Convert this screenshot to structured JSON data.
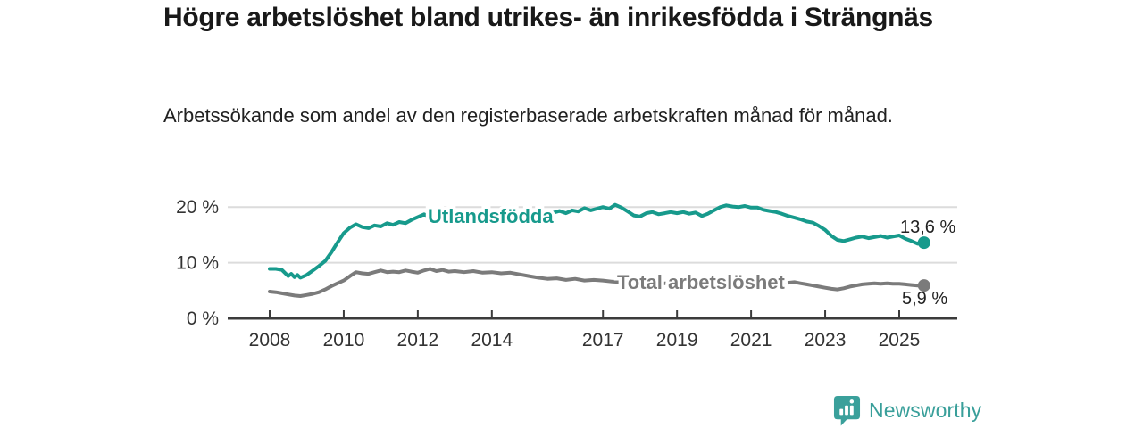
{
  "page": {
    "title": "Högre arbetslöshet bland utrikes- än inrikesfödda i Strängnäs",
    "subtitle": "Arbetssökande som andel av den registerbaserade arbetskraften månad för månad.",
    "brand": {
      "name": "Newsworthy",
      "logo_icon": "bar-chart-speech-bubble-icon",
      "color": "#3aa09b"
    }
  },
  "chart_data": {
    "type": "line",
    "title": "Högre arbetslöshet bland utrikes- än inrikesfödda i Strängnäs",
    "subtitle": "Arbetssökande som andel av den registerbaserade arbetskraften månad för månad.",
    "unit": "%",
    "grid": "horizontal-only",
    "legend_position": "inline-labels-on-lines",
    "colors": {
      "axis": "#3b3b3b",
      "gridline": "#dcdcdc",
      "tick_text": "#333333",
      "end_label_text": "#222222"
    },
    "x_axis": {
      "label": "",
      "ticks": [
        2008,
        2010,
        2012,
        2014,
        2017,
        2019,
        2021,
        2023,
        2025
      ],
      "range": [
        2006.9,
        2026.6
      ]
    },
    "y_axis": {
      "label": "",
      "ticks": [
        0,
        10,
        20
      ],
      "tick_labels": [
        "0 %",
        "10 %",
        "20 %"
      ],
      "range": [
        0,
        22.5
      ]
    },
    "series": [
      {
        "name": "Utlandsfödda",
        "color": "#179a8c",
        "end_value": 13.6,
        "end_label": "13,6 %",
        "points": [
          [
            2008.0,
            8.9
          ],
          [
            2008.17,
            8.9
          ],
          [
            2008.33,
            8.7
          ],
          [
            2008.5,
            7.6
          ],
          [
            2008.58,
            8.0
          ],
          [
            2008.67,
            7.4
          ],
          [
            2008.75,
            7.8
          ],
          [
            2008.83,
            7.3
          ],
          [
            2009.0,
            7.8
          ],
          [
            2009.17,
            8.6
          ],
          [
            2009.33,
            9.4
          ],
          [
            2009.5,
            10.3
          ],
          [
            2009.67,
            11.9
          ],
          [
            2009.83,
            13.6
          ],
          [
            2010.0,
            15.3
          ],
          [
            2010.17,
            16.3
          ],
          [
            2010.33,
            16.9
          ],
          [
            2010.5,
            16.4
          ],
          [
            2010.67,
            16.2
          ],
          [
            2010.83,
            16.7
          ],
          [
            2011.0,
            16.5
          ],
          [
            2011.17,
            17.1
          ],
          [
            2011.33,
            16.8
          ],
          [
            2011.5,
            17.3
          ],
          [
            2011.67,
            17.1
          ],
          [
            2011.83,
            17.7
          ],
          [
            2012.0,
            18.2
          ],
          [
            2012.17,
            18.7
          ],
          [
            2012.33,
            18.2
          ],
          [
            2012.5,
            18.5
          ],
          [
            2012.67,
            18.1
          ],
          [
            2012.83,
            18.4
          ],
          [
            2013.0,
            18.3
          ],
          [
            2013.25,
            18.5
          ],
          [
            2013.5,
            18.4
          ],
          [
            2013.75,
            18.6
          ],
          [
            2014.0,
            18.5
          ],
          [
            2014.25,
            18.7
          ],
          [
            2014.5,
            18.5
          ],
          [
            2014.75,
            18.6
          ],
          [
            2015.0,
            18.7
          ],
          [
            2015.25,
            18.6
          ],
          [
            2015.5,
            18.8
          ],
          [
            2015.67,
            19.0
          ],
          [
            2015.83,
            19.3
          ],
          [
            2016.0,
            18.9
          ],
          [
            2016.17,
            19.4
          ],
          [
            2016.33,
            19.2
          ],
          [
            2016.5,
            19.8
          ],
          [
            2016.67,
            19.4
          ],
          [
            2016.83,
            19.7
          ],
          [
            2017.0,
            20.0
          ],
          [
            2017.17,
            19.7
          ],
          [
            2017.33,
            20.4
          ],
          [
            2017.5,
            19.9
          ],
          [
            2017.67,
            19.2
          ],
          [
            2017.83,
            18.5
          ],
          [
            2018.0,
            18.3
          ],
          [
            2018.17,
            18.9
          ],
          [
            2018.33,
            19.1
          ],
          [
            2018.5,
            18.7
          ],
          [
            2018.67,
            18.9
          ],
          [
            2018.83,
            19.1
          ],
          [
            2019.0,
            18.9
          ],
          [
            2019.17,
            19.1
          ],
          [
            2019.33,
            18.8
          ],
          [
            2019.5,
            19.0
          ],
          [
            2019.67,
            18.4
          ],
          [
            2019.83,
            18.8
          ],
          [
            2020.0,
            19.4
          ],
          [
            2020.17,
            20.0
          ],
          [
            2020.33,
            20.3
          ],
          [
            2020.5,
            20.1
          ],
          [
            2020.67,
            20.0
          ],
          [
            2020.83,
            20.2
          ],
          [
            2021.0,
            19.9
          ],
          [
            2021.17,
            19.9
          ],
          [
            2021.33,
            19.5
          ],
          [
            2021.5,
            19.3
          ],
          [
            2021.67,
            19.1
          ],
          [
            2021.83,
            18.8
          ],
          [
            2022.0,
            18.4
          ],
          [
            2022.17,
            18.1
          ],
          [
            2022.33,
            17.8
          ],
          [
            2022.5,
            17.4
          ],
          [
            2022.67,
            17.2
          ],
          [
            2022.83,
            16.6
          ],
          [
            2023.0,
            15.9
          ],
          [
            2023.17,
            14.8
          ],
          [
            2023.33,
            14.1
          ],
          [
            2023.5,
            13.9
          ],
          [
            2023.67,
            14.2
          ],
          [
            2023.83,
            14.5
          ],
          [
            2024.0,
            14.7
          ],
          [
            2024.17,
            14.4
          ],
          [
            2024.33,
            14.6
          ],
          [
            2024.5,
            14.8
          ],
          [
            2024.67,
            14.5
          ],
          [
            2024.83,
            14.7
          ],
          [
            2025.0,
            14.9
          ],
          [
            2025.17,
            14.3
          ],
          [
            2025.33,
            13.9
          ],
          [
            2025.5,
            13.4
          ],
          [
            2025.58,
            13.9
          ],
          [
            2025.67,
            13.6
          ]
        ]
      },
      {
        "name": "Total arbetslöshet",
        "color": "#7b7b7b",
        "end_value": 5.9,
        "end_label": "5,9 %",
        "points": [
          [
            2008.0,
            4.8
          ],
          [
            2008.17,
            4.7
          ],
          [
            2008.33,
            4.5
          ],
          [
            2008.5,
            4.3
          ],
          [
            2008.67,
            4.1
          ],
          [
            2008.83,
            4.0
          ],
          [
            2009.0,
            4.2
          ],
          [
            2009.17,
            4.4
          ],
          [
            2009.33,
            4.7
          ],
          [
            2009.5,
            5.2
          ],
          [
            2009.67,
            5.8
          ],
          [
            2009.83,
            6.3
          ],
          [
            2010.0,
            6.8
          ],
          [
            2010.17,
            7.6
          ],
          [
            2010.33,
            8.3
          ],
          [
            2010.5,
            8.1
          ],
          [
            2010.67,
            8.0
          ],
          [
            2010.83,
            8.3
          ],
          [
            2011.0,
            8.6
          ],
          [
            2011.17,
            8.3
          ],
          [
            2011.33,
            8.4
          ],
          [
            2011.5,
            8.3
          ],
          [
            2011.67,
            8.6
          ],
          [
            2011.83,
            8.4
          ],
          [
            2012.0,
            8.2
          ],
          [
            2012.17,
            8.6
          ],
          [
            2012.33,
            8.9
          ],
          [
            2012.5,
            8.5
          ],
          [
            2012.67,
            8.7
          ],
          [
            2012.83,
            8.4
          ],
          [
            2013.0,
            8.5
          ],
          [
            2013.25,
            8.3
          ],
          [
            2013.5,
            8.5
          ],
          [
            2013.75,
            8.2
          ],
          [
            2014.0,
            8.3
          ],
          [
            2014.25,
            8.1
          ],
          [
            2014.5,
            8.2
          ],
          [
            2014.75,
            7.9
          ],
          [
            2015.0,
            7.6
          ],
          [
            2015.25,
            7.3
          ],
          [
            2015.5,
            7.1
          ],
          [
            2015.75,
            7.2
          ],
          [
            2016.0,
            6.9
          ],
          [
            2016.25,
            7.1
          ],
          [
            2016.5,
            6.8
          ],
          [
            2016.75,
            6.9
          ],
          [
            2017.0,
            6.8
          ],
          [
            2017.25,
            6.6
          ],
          [
            2017.5,
            6.5
          ],
          [
            2017.75,
            6.4
          ],
          [
            2018.0,
            6.3
          ],
          [
            2018.33,
            6.2
          ],
          [
            2018.67,
            6.3
          ],
          [
            2019.0,
            6.3
          ],
          [
            2019.33,
            6.4
          ],
          [
            2019.67,
            6.5
          ],
          [
            2020.0,
            6.7
          ],
          [
            2020.33,
            6.9
          ],
          [
            2020.67,
            6.8
          ],
          [
            2021.0,
            6.7
          ],
          [
            2021.33,
            6.5
          ],
          [
            2021.67,
            6.4
          ],
          [
            2022.0,
            6.4
          ],
          [
            2022.17,
            6.5
          ],
          [
            2022.33,
            6.3
          ],
          [
            2022.5,
            6.1
          ],
          [
            2022.67,
            5.9
          ],
          [
            2022.83,
            5.7
          ],
          [
            2023.0,
            5.5
          ],
          [
            2023.17,
            5.3
          ],
          [
            2023.33,
            5.2
          ],
          [
            2023.5,
            5.4
          ],
          [
            2023.67,
            5.7
          ],
          [
            2023.83,
            5.9
          ],
          [
            2024.0,
            6.1
          ],
          [
            2024.17,
            6.2
          ],
          [
            2024.33,
            6.3
          ],
          [
            2024.5,
            6.2
          ],
          [
            2024.67,
            6.3
          ],
          [
            2024.83,
            6.2
          ],
          [
            2025.0,
            6.2
          ],
          [
            2025.17,
            6.1
          ],
          [
            2025.33,
            6.0
          ],
          [
            2025.5,
            5.9
          ],
          [
            2025.67,
            5.9
          ]
        ]
      }
    ]
  }
}
